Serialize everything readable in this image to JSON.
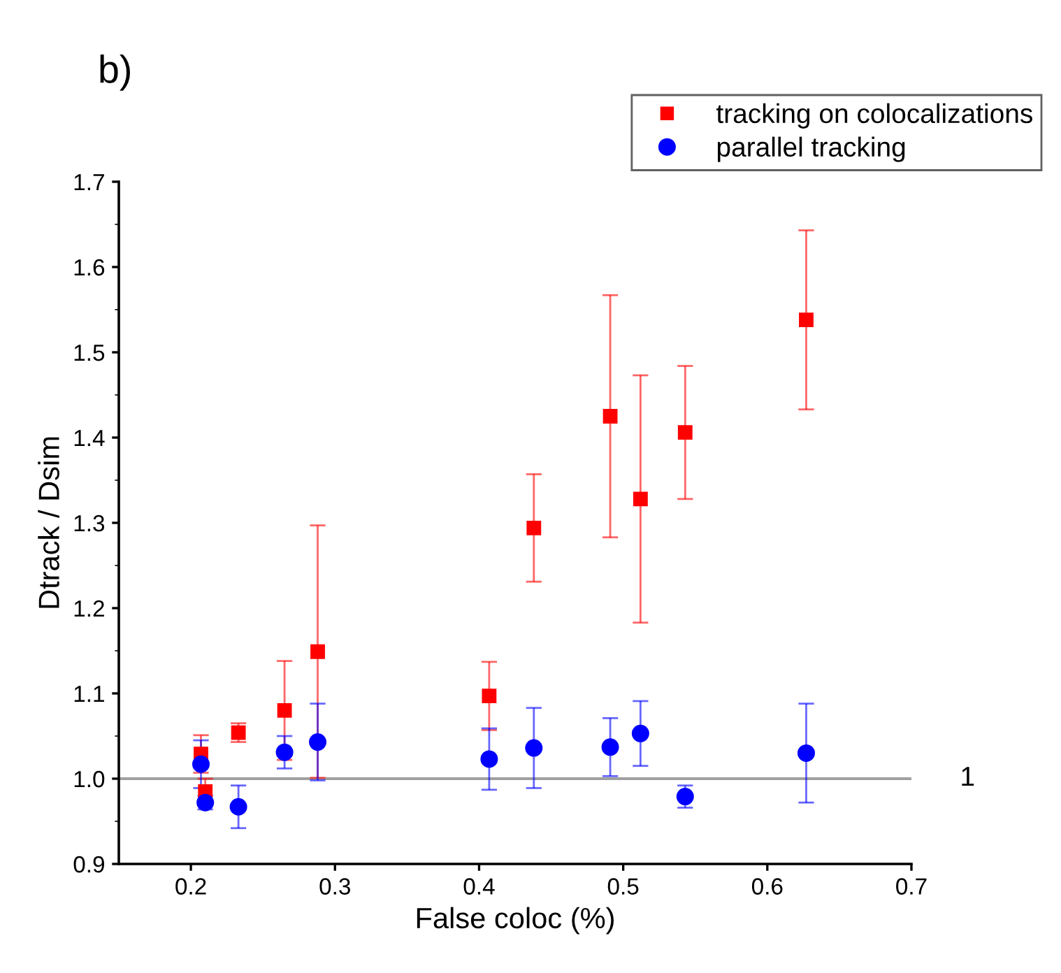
{
  "chart_data": {
    "type": "scatter",
    "title": "b)",
    "xlabel": "False coloc (%)",
    "ylabel": "Dtrack / Dsim",
    "xlim": [
      0.15,
      0.7
    ],
    "xticks": [
      0.2,
      0.3,
      0.4,
      0.5,
      0.6,
      0.7
    ],
    "ylim": [
      0.9,
      1.7
    ],
    "yticks": [
      0.9,
      {
        "value": 1.0,
        "label": "1.0"
      },
      1.1,
      1.2,
      1.3,
      1.4,
      1.5,
      1.6,
      1.7
    ],
    "grid": false,
    "legend": "top right",
    "ref_lines": [
      {
        "axis": "y",
        "value": 1.0,
        "label": "1",
        "color": "#a0a0a0"
      }
    ],
    "series": [
      {
        "name": "tracking on colocalizations",
        "color": "#ff0000",
        "marker": "square",
        "x": [
          0.207,
          0.21,
          0.233,
          0.265,
          0.288,
          0.407,
          0.438,
          0.491,
          0.512,
          0.543,
          0.627
        ],
        "values": [
          1.029,
          0.985,
          1.054,
          1.08,
          1.149,
          1.097,
          1.294,
          1.425,
          1.328,
          1.406,
          1.538
        ],
        "errors": [
          0.022,
          0.015,
          0.011,
          0.058,
          0.148,
          0.04,
          0.063,
          0.142,
          0.145,
          0.078,
          0.105
        ]
      },
      {
        "name": "parallel tracking",
        "color": "#0000ff",
        "marker": "circle",
        "x": [
          0.207,
          0.21,
          0.233,
          0.265,
          0.288,
          0.407,
          0.438,
          0.491,
          0.512,
          0.543,
          0.627
        ],
        "values": [
          1.017,
          0.972,
          0.967,
          1.031,
          1.043,
          1.023,
          1.036,
          1.037,
          1.053,
          0.979,
          1.03
        ],
        "errors": [
          0.028,
          0.008,
          0.025,
          0.019,
          0.045,
          0.036,
          0.047,
          0.034,
          0.038,
          0.013,
          0.058
        ]
      }
    ]
  }
}
